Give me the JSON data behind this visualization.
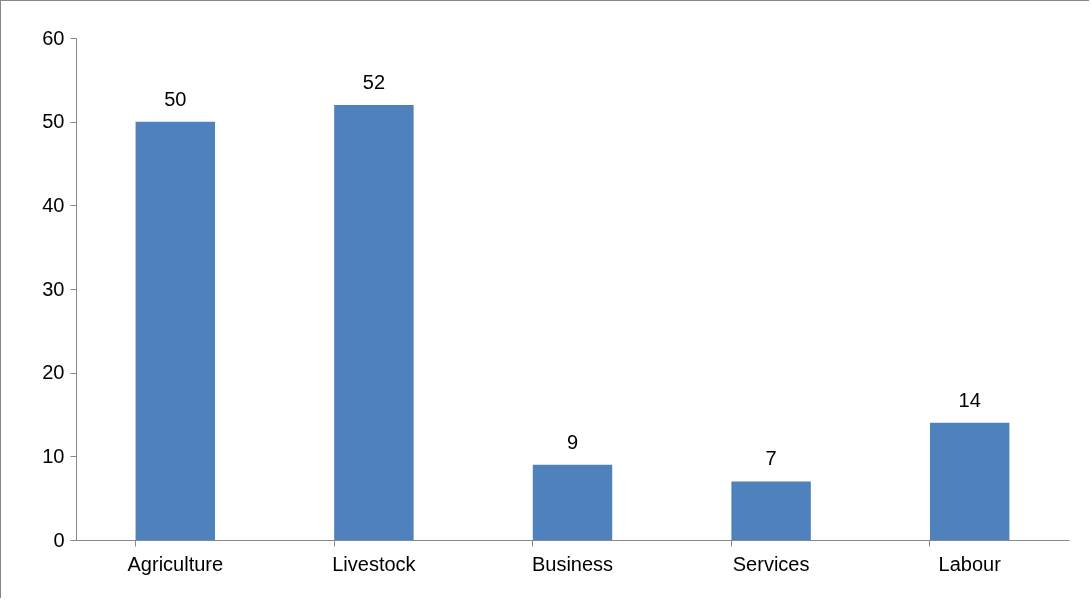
{
  "chart_data": {
    "type": "bar",
    "categories": [
      "Agriculture",
      "Livestock",
      "Business",
      "Services",
      "Labour"
    ],
    "values": [
      50,
      52,
      9,
      7,
      14
    ],
    "color": "#4f81bd",
    "ylim": [
      0,
      60
    ],
    "yticks": [
      0,
      10,
      20,
      30,
      40,
      50,
      60
    ],
    "grid": false,
    "data_labels": true
  }
}
